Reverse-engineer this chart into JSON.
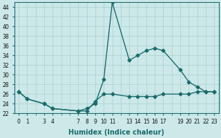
{
  "xlabel": "Humidex (Indice chaleur)",
  "bg_color": "#cce8e8",
  "line_color": "#1a6b6b",
  "grid_color": "#aacfcf",
  "series1_y": [
    26.5,
    25.0,
    null,
    24.0,
    23.0,
    null,
    null,
    22.5,
    23.0,
    24.0,
    29.0,
    45.0,
    null,
    33.0,
    34.0,
    35.0,
    35.5,
    35.0,
    null,
    31.0,
    28.5,
    27.5,
    26.5,
    26.5
  ],
  "series2_y": [
    26.5,
    25.0,
    null,
    24.0,
    23.0,
    null,
    null,
    22.5,
    22.5,
    24.5,
    26.0,
    26.0,
    null,
    25.5,
    25.5,
    25.5,
    25.5,
    26.0,
    null,
    26.0,
    26.0,
    26.5,
    26.5,
    26.5
  ],
  "ylim": [
    22,
    45
  ],
  "ytick_vals": [
    22,
    24,
    26,
    28,
    30,
    32,
    34,
    36,
    38,
    40,
    42,
    44
  ],
  "xtick_positions": [
    0,
    1,
    3,
    4,
    7,
    8,
    9,
    10,
    11,
    13,
    14,
    15,
    16,
    17,
    19,
    20,
    21,
    22,
    23
  ],
  "xlim": [
    -0.5,
    23.5
  ],
  "marker": "D",
  "marker_size": 2.5,
  "line_width": 1.0,
  "ylabel_fontsize": 6,
  "xlabel_fontsize": 7,
  "tick_fontsize": 5.5
}
